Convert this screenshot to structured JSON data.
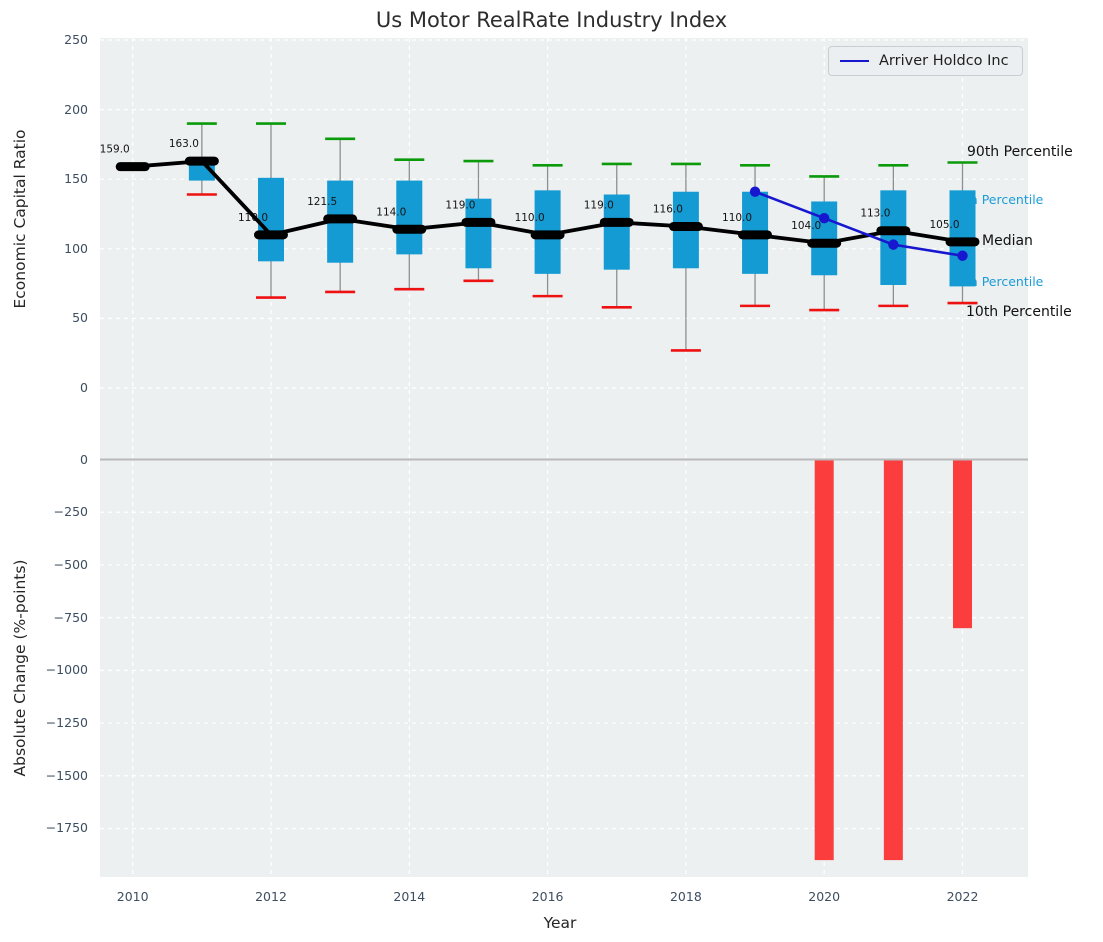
{
  "title": "Us Motor RealRate Industry Index",
  "legend": {
    "label": "Arriver Holdco Inc"
  },
  "annotations": {
    "p90": "90th Percentile",
    "p75": "75th Percentile",
    "median": "Median",
    "p25": "25th Percentile",
    "p10": "10th Percentile"
  },
  "colors": {
    "box": "#149bd3",
    "whisker": "#8f8f8f",
    "cap_top": "#0a9a0a",
    "cap_bottom": "#ee1111",
    "median": "#000000",
    "median_label": "#141414",
    "company_line": "#1717d0",
    "bar": "#fb3d3d",
    "grid": "#ffffff",
    "plot_bg": "#edf0f1",
    "zero_line": "#b9b9bc",
    "tick_text": "#3d4e61",
    "annotation_cyan": "#1b9cd8"
  },
  "chart_data": [
    {
      "type": "boxplot+line",
      "title": "Us Motor RealRate Industry Index",
      "ylabel": "Economic Capital Ratio",
      "xlabel": "Year",
      "ylim": [
        -40,
        252
      ],
      "yticks": [
        250,
        200,
        150,
        100,
        50,
        0
      ],
      "xticks": [
        2010,
        2012,
        2014,
        2016,
        2018,
        2020,
        2022
      ],
      "grid": true,
      "legend_position": "upper right",
      "years": [
        2010,
        2011,
        2012,
        2013,
        2014,
        2015,
        2016,
        2017,
        2018,
        2019,
        2020,
        2021,
        2022
      ],
      "median": [
        159,
        163,
        110,
        121.5,
        114,
        119,
        110,
        119,
        116,
        110,
        104,
        113,
        105
      ],
      "median_labels": [
        "159.0",
        "163.0",
        "110.0",
        "121.5",
        "114.0",
        "119.0",
        "110.0",
        "119.0",
        "116.0",
        "110.0",
        "104.0",
        "113.0",
        "105.0"
      ],
      "p90": [
        161,
        190,
        190,
        179,
        164,
        163,
        160,
        161,
        161,
        160,
        152,
        160,
        162
      ],
      "p75": [
        160,
        163,
        151,
        149,
        149,
        136,
        142,
        139,
        141,
        141,
        134,
        142,
        142
      ],
      "p25": [
        158,
        149,
        91,
        90,
        96,
        86,
        82,
        85,
        86,
        82,
        81,
        74,
        73
      ],
      "p10": [
        158,
        139,
        65,
        69,
        71,
        77,
        66,
        58,
        27,
        59,
        56,
        59,
        61
      ],
      "series": [
        {
          "name": "Arriver Holdco Inc",
          "x": [
            2019,
            2020,
            2021,
            2022
          ],
          "values": [
            141,
            122,
            103,
            95
          ]
        }
      ]
    },
    {
      "type": "bar",
      "ylabel": "Absolute Change (%-points)",
      "xlabel": "Year",
      "ylim": [
        60,
        -1980
      ],
      "yticks": [
        0,
        -250,
        -500,
        -750,
        -1000,
        -1250,
        -1500,
        -1750
      ],
      "xticks": [
        2010,
        2012,
        2014,
        2016,
        2018,
        2020,
        2022
      ],
      "grid": true,
      "categories": [
        2020,
        2021,
        2022
      ],
      "values": [
        -1900,
        -1900,
        -800
      ]
    }
  ]
}
